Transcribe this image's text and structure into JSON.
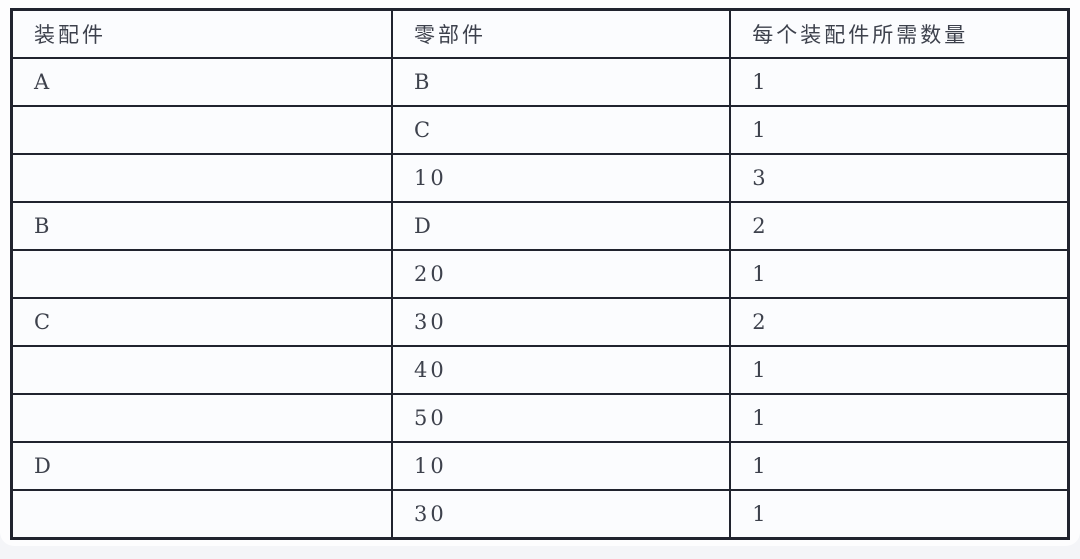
{
  "table": {
    "columns": [
      "装配件",
      "零部件",
      "每个装配件所需数量"
    ],
    "rows": [
      [
        "A",
        "B",
        "1"
      ],
      [
        "",
        "C",
        "1"
      ],
      [
        "",
        "10",
        "3"
      ],
      [
        "B",
        "D",
        "2"
      ],
      [
        "",
        "20",
        "1"
      ],
      [
        "C",
        "30",
        "2"
      ],
      [
        "",
        "40",
        "1"
      ],
      [
        "",
        "50",
        "1"
      ],
      [
        "D",
        "10",
        "1"
      ],
      [
        "",
        "30",
        "1"
      ]
    ]
  },
  "colors": {
    "border": "#20232e",
    "cell_bg": "#fbfcfe",
    "text": "#3d414c",
    "page_bg": "#fdfdfe",
    "canvas_bg": "#f4f5f8"
  }
}
